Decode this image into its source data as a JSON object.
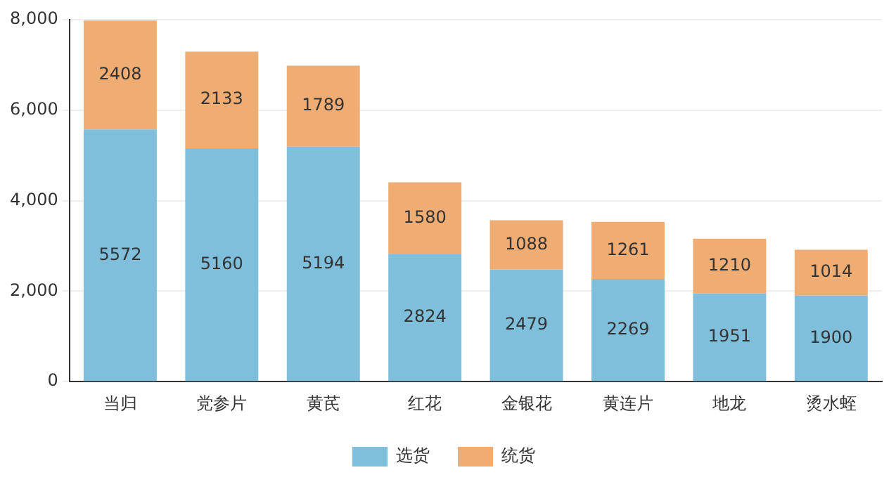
{
  "chart_data": {
    "type": "bar",
    "stacked": true,
    "categories": [
      "当归",
      "党参片",
      "黄芪",
      "红花",
      "金银花",
      "黄连片",
      "地龙",
      "烫水蛭"
    ],
    "series": [
      {
        "name": "选货",
        "color": "#7fbfdc",
        "values": [
          5572,
          5160,
          5194,
          2824,
          2479,
          2269,
          1951,
          1900
        ]
      },
      {
        "name": "统货",
        "color": "#f0ad73",
        "values": [
          2408,
          2133,
          1789,
          1580,
          1088,
          1261,
          1210,
          1014
        ]
      }
    ],
    "ylim": [
      0,
      8000
    ],
    "yticks": [
      0,
      {
        "value": 2000,
        "label": "2,000"
      },
      {
        "value": 4000,
        "label": "4,000"
      },
      {
        "value": 6000,
        "label": "6,000"
      },
      {
        "value": 8000,
        "label": "8,000"
      }
    ],
    "grid": "y",
    "legend": "bottom",
    "data_labels": true
  }
}
